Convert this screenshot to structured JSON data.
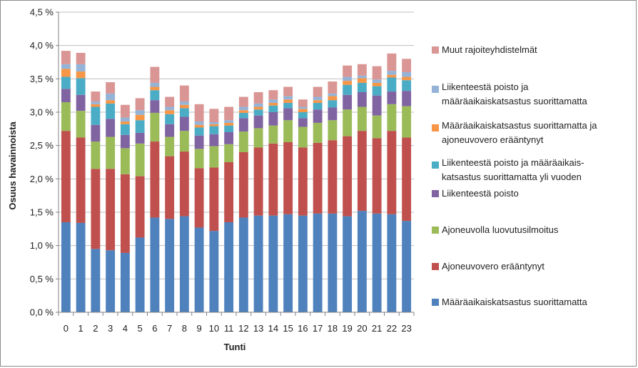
{
  "chart_data": {
    "type": "bar",
    "stacked": true,
    "xlabel": "Tunti",
    "ylabel": "Osuus havainnoista",
    "ylim": [
      0,
      4.5
    ],
    "yticks": [
      "0,0 %",
      "0,5 %",
      "1,0 %",
      "1,5 %",
      "2,0 %",
      "2,5 %",
      "3,0 %",
      "3,5 %",
      "4,0 %",
      "4,5 %"
    ],
    "grid": true,
    "legend_position": "right",
    "categories": [
      "0",
      "1",
      "2",
      "3",
      "4",
      "5",
      "6",
      "7",
      "8",
      "9",
      "10",
      "11",
      "12",
      "13",
      "14",
      "15",
      "16",
      "17",
      "18",
      "19",
      "20",
      "21",
      "22",
      "23"
    ],
    "series": [
      {
        "name": "Määräaikaiskatsastus suorittamatta",
        "color": "#4f81bd",
        "values": [
          1.35,
          1.34,
          0.95,
          0.93,
          0.89,
          1.12,
          1.42,
          1.4,
          1.44,
          1.27,
          1.22,
          1.35,
          1.42,
          1.45,
          1.45,
          1.47,
          1.45,
          1.48,
          1.48,
          1.44,
          1.52,
          1.48,
          1.47,
          1.37
        ]
      },
      {
        "name": "Ajoneuvovero erääntynyt",
        "color": "#c0504d",
        "values": [
          1.37,
          1.28,
          1.2,
          1.22,
          1.18,
          0.92,
          1.14,
          0.94,
          0.97,
          0.89,
          0.95,
          0.9,
          0.98,
          1.02,
          1.08,
          1.08,
          1.02,
          1.06,
          1.1,
          1.2,
          1.2,
          1.13,
          1.25,
          1.25
        ]
      },
      {
        "name": "Ajoneuvolla luovutusilmoitus",
        "color": "#9bbb59",
        "values": [
          0.43,
          0.4,
          0.41,
          0.48,
          0.39,
          0.49,
          0.43,
          0.29,
          0.31,
          0.29,
          0.32,
          0.27,
          0.31,
          0.29,
          0.27,
          0.33,
          0.31,
          0.3,
          0.3,
          0.4,
          0.36,
          0.34,
          0.4,
          0.47
        ]
      },
      {
        "name": "Liikenteestä poisto",
        "color": "#8064a2",
        "values": [
          0.2,
          0.24,
          0.25,
          0.27,
          0.2,
          0.16,
          0.19,
          0.19,
          0.21,
          0.2,
          0.18,
          0.18,
          0.2,
          0.19,
          0.2,
          0.18,
          0.13,
          0.2,
          0.19,
          0.22,
          0.22,
          0.3,
          0.19,
          0.23
        ]
      },
      {
        "name": "Liikenteestä poisto ja määräaikais-katsastus suorittamatta yli vuoden",
        "color": "#4bacc6",
        "values": [
          0.18,
          0.25,
          0.27,
          0.23,
          0.16,
          0.19,
          0.15,
          0.15,
          0.13,
          0.12,
          0.12,
          0.1,
          0.08,
          0.09,
          0.1,
          0.08,
          0.09,
          0.1,
          0.11,
          0.15,
          0.14,
          0.14,
          0.21,
          0.16
        ]
      },
      {
        "name": "Määräaikaiskatsastus suorittamatta ja ajoneuvovero erääntynyt",
        "color": "#f79646",
        "values": [
          0.12,
          0.1,
          0.04,
          0.05,
          0.04,
          0.08,
          0.05,
          0.06,
          0.05,
          0.04,
          0.03,
          0.04,
          0.04,
          0.04,
          0.04,
          0.05,
          0.05,
          0.04,
          0.06,
          0.06,
          0.07,
          0.05,
          0.04,
          0.05
        ]
      },
      {
        "name": "Liikenteestä poisto ja määräaikaiskatsastus suorittamatta",
        "color": "#95b3d7",
        "values": [
          0.07,
          0.11,
          0.04,
          0.1,
          0.06,
          0.07,
          0.06,
          0.05,
          0.05,
          0.05,
          0.03,
          0.04,
          0.05,
          0.05,
          0.05,
          0.05,
          0.03,
          0.05,
          0.04,
          0.06,
          0.04,
          0.05,
          0.06,
          0.07
        ]
      },
      {
        "name": "Muut rajoiteyhdistelmät",
        "color": "#d99694",
        "values": [
          0.2,
          0.17,
          0.15,
          0.17,
          0.19,
          0.18,
          0.24,
          0.15,
          0.24,
          0.26,
          0.2,
          0.2,
          0.15,
          0.17,
          0.14,
          0.14,
          0.11,
          0.15,
          0.18,
          0.17,
          0.17,
          0.2,
          0.26,
          0.2
        ]
      }
    ]
  },
  "legend_lines": [
    [
      "Muut rajoiteyhdistelmät"
    ],
    [
      "Liikenteestä poisto ja",
      "määräaikaiskatsastus suorittamatta"
    ],
    [
      "Määräaikaiskatsastus suorittamatta ja",
      "ajoneuvovero erääntynyt"
    ],
    [
      "Liikenteestä poisto ja määräaikais-",
      "katsastus suorittamatta yli vuoden"
    ],
    [
      "Liikenteestä poisto"
    ],
    [
      "Ajoneuvolla luovutusilmoitus"
    ],
    [
      "Ajoneuvovero erääntynyt"
    ],
    [
      "Määräaikaiskatsastus suorittamatta"
    ]
  ]
}
